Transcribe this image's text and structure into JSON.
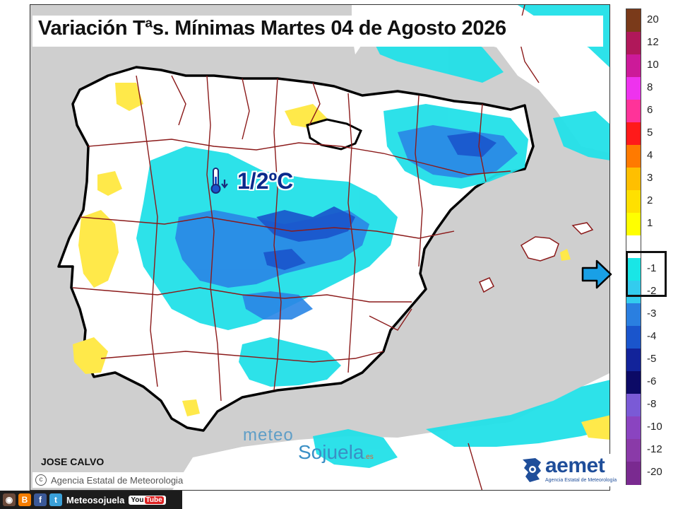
{
  "title": "Variación Tªs. Mínimas Martes 04 de Agosto 2026",
  "annotation": {
    "icon": "thermometer-down-icon",
    "text": "1/2ºC"
  },
  "author": "JOSE CALVO",
  "agency_credit": "Agencia Estatal de Meteorologia",
  "watermark": {
    "top": "meteo",
    "bottom": "Sojuela",
    "suffix": ".es"
  },
  "aemet_logo": {
    "word": "aemet",
    "subtitle": "Agencia Estatal de Meteorología"
  },
  "social_bar": {
    "icons": [
      "instagram-icon",
      "blogger-icon",
      "facebook-icon",
      "twitter-icon"
    ],
    "name": "Meteosojuela",
    "youtube": "You",
    "youtube_tube": "Tube"
  },
  "legend": {
    "items": [
      {
        "label": "20",
        "color": "#7a3a1a"
      },
      {
        "label": "12",
        "color": "#b0185a"
      },
      {
        "label": "10",
        "color": "#cc1a99"
      },
      {
        "label": "8",
        "color": "#ee33ee"
      },
      {
        "label": "6",
        "color": "#ff3399"
      },
      {
        "label": "5",
        "color": "#ff1a1a"
      },
      {
        "label": "4",
        "color": "#ff7a00"
      },
      {
        "label": "3",
        "color": "#ffbf00"
      },
      {
        "label": "2",
        "color": "#ffe000"
      },
      {
        "label": "1",
        "color": "#ffff00"
      },
      {
        "label": "",
        "color": "#ffffff"
      },
      {
        "label": "-1",
        "color": "#19e6e6"
      },
      {
        "label": "-2",
        "color": "#33ccee"
      },
      {
        "label": "-3",
        "color": "#2a7fe0"
      },
      {
        "label": "-4",
        "color": "#1a55cc"
      },
      {
        "label": "-5",
        "color": "#12239a"
      },
      {
        "label": "-6",
        "color": "#0c0a66"
      },
      {
        "label": "-8",
        "color": "#7a5ad6"
      },
      {
        "label": "-10",
        "color": "#8a44c0"
      },
      {
        "label": "-12",
        "color": "#8a3aa8"
      },
      {
        "label": "-20",
        "color": "#7a2a90"
      }
    ]
  },
  "colors": {
    "sea": "#cfcfcf",
    "land": "#ffffff",
    "cold1": "#22e0e8",
    "cold2": "#2a86e6",
    "cold3": "#1a55cc",
    "warm1": "#ffe94a",
    "border": "#8b1a1a",
    "coast": "#000000",
    "arrow": "#19a0e6"
  }
}
